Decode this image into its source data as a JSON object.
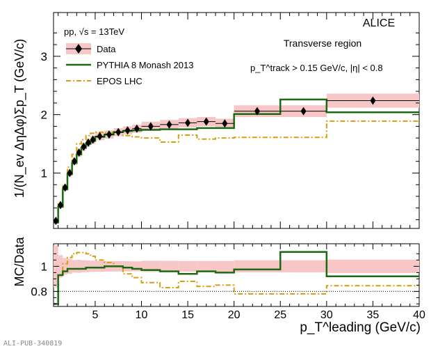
{
  "chart_data": {
    "type": "line",
    "experiment": "ALICE",
    "collision": "pp, √s = 13TeV",
    "region": "Transverse region",
    "selection": "p_T^track > 0.15 GeV/c, |η| < 0.8",
    "xlabel": "p_T^leading (GeV/c)",
    "ylabel_top": "1/(N_ev ΔηΔφ)Σp_T (GeV/c)",
    "ylabel_bottom": "MC/Data",
    "xlim": [
      0.5,
      40
    ],
    "ylim_top": [
      0.05,
      3.75
    ],
    "ylim_bottom": [
      0.68,
      1.18
    ],
    "xticks": [
      5,
      10,
      15,
      20,
      25,
      30,
      35,
      40
    ],
    "yticks_top": [
      1,
      2,
      3
    ],
    "yticks_bottom": [
      0.8,
      1
    ],
    "ratio_reference": 0.8,
    "legend": [
      {
        "name": "Data",
        "color": "#000000",
        "style": "marker"
      },
      {
        "name": "PYTHIA 8 Monash 2013",
        "color": "#1a6b10",
        "style": "solid"
      },
      {
        "name": "EPOS LHC",
        "color": "#d4a010",
        "style": "dashdot"
      }
    ],
    "data": {
      "x": [
        0.75,
        1.25,
        1.75,
        2.25,
        2.75,
        3.25,
        3.75,
        4.25,
        4.75,
        5.5,
        6.5,
        7.5,
        8.5,
        9.5,
        11,
        13,
        15,
        17,
        19,
        22.5,
        27.5,
        35
      ],
      "xerr": [
        0.25,
        0.25,
        0.25,
        0.25,
        0.25,
        0.25,
        0.25,
        0.25,
        0.25,
        0.5,
        0.5,
        0.5,
        0.5,
        0.5,
        1,
        1,
        1,
        1,
        1,
        2.5,
        2.5,
        5
      ],
      "y": [
        0.18,
        0.45,
        0.75,
        1.0,
        1.2,
        1.35,
        1.45,
        1.52,
        1.57,
        1.63,
        1.66,
        1.7,
        1.73,
        1.76,
        1.8,
        1.83,
        1.86,
        1.88,
        1.85,
        2.06,
        2.06,
        2.24
      ],
      "syst": [
        0.03,
        0.04,
        0.05,
        0.06,
        0.06,
        0.07,
        0.07,
        0.07,
        0.07,
        0.07,
        0.07,
        0.07,
        0.07,
        0.07,
        0.08,
        0.08,
        0.08,
        0.08,
        0.08,
        0.1,
        0.1,
        0.12
      ]
    },
    "pythia": {
      "edges": [
        0.5,
        1,
        1.5,
        2,
        2.5,
        3,
        3.5,
        4,
        4.5,
        5,
        6,
        7,
        8,
        9,
        10,
        12,
        14,
        16,
        18,
        20,
        25,
        30,
        40
      ],
      "values": [
        0.15,
        0.42,
        0.72,
        0.98,
        1.17,
        1.32,
        1.43,
        1.5,
        1.55,
        1.62,
        1.66,
        1.7,
        1.72,
        1.73,
        1.74,
        1.75,
        1.75,
        1.77,
        1.77,
        2.01,
        2.26,
        2.04
      ]
    },
    "epos": {
      "edges": [
        0.5,
        1,
        1.5,
        2,
        2.5,
        3,
        3.5,
        4,
        4.5,
        5,
        6,
        7,
        8,
        9,
        10,
        12,
        14,
        16,
        18,
        20,
        25,
        30,
        40
      ],
      "values": [
        0.15,
        0.47,
        0.8,
        1.1,
        1.32,
        1.5,
        1.57,
        1.64,
        1.68,
        1.7,
        1.69,
        1.7,
        1.64,
        1.62,
        1.6,
        1.53,
        1.65,
        1.58,
        1.6,
        1.61,
        1.61,
        1.89
      ]
    },
    "ratio_pythia": [
      0.7,
      0.93,
      0.96,
      0.98,
      0.98,
      0.98,
      0.98,
      0.99,
      0.99,
      0.99,
      1.0,
      1.0,
      0.99,
      0.98,
      0.97,
      0.96,
      0.94,
      0.96,
      0.95,
      0.975,
      1.115,
      0.92
    ],
    "ratio_epos": [
      0.7,
      0.93,
      1.02,
      1.07,
      1.1,
      1.11,
      1.11,
      1.1,
      1.08,
      1.05,
      1.03,
      1.0,
      0.94,
      0.91,
      0.87,
      0.83,
      0.88,
      0.84,
      0.85,
      0.78,
      0.78,
      0.845
    ]
  },
  "footer": "ALI-PUB-340819"
}
